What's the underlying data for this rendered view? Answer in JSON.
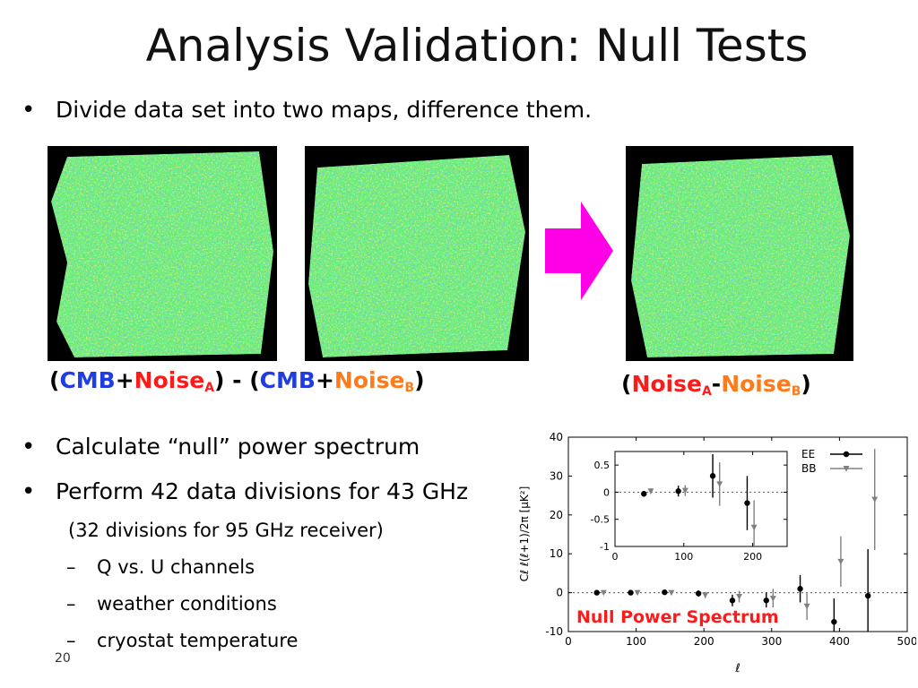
{
  "slide": {
    "title": "Analysis Validation: Null Tests",
    "page_number": "20",
    "bullets": [
      "Divide data set into two maps, difference them.",
      "Calculate “null” power spectrum",
      "Perform 42 data divisions for 43 GHz"
    ],
    "note": "(32 divisions for 95 GHz receiver)",
    "sub_items": [
      "Q vs. U channels",
      "weather conditions",
      "cryostat temperature"
    ],
    "colors": {
      "cmb": "#1f3de0",
      "noise_a": "#ff1a1a",
      "noise_b": "#ff7a1a",
      "arrow": "#ff00e6",
      "map_green": "#6cf07a",
      "null_label": "#ff1a1a"
    },
    "caption_left": {
      "open": "(",
      "cmb_1": "CMB",
      "plus_1": "+",
      "noise_1": "Noise",
      "noise_1_sub": "A",
      "mid": ") - (",
      "cmb_2": "CMB",
      "plus_2": "+",
      "noise_2": "Noise",
      "noise_2_sub": "B",
      "close": ")"
    },
    "caption_right": {
      "open": "(",
      "noise_1": "Noise",
      "noise_1_sub": "A",
      "minus": "-",
      "noise_2": "Noise",
      "noise_2_sub": "B",
      "close": ")"
    },
    "arrow_icon": "right-arrow-icon"
  },
  "chart_data": [
    {
      "type": "scatter",
      "title": "Null Power Spectrum",
      "xlabel": "ℓ",
      "ylabel": "Cℓ ℓ(ℓ+1)/2π [μK²]",
      "xlim": [
        0,
        500
      ],
      "ylim": [
        -10,
        40
      ],
      "xticks": [
        "0",
        "100",
        "200",
        "300",
        "400",
        "500"
      ],
      "yticks": [
        "-10",
        "0",
        "10",
        "20",
        "30",
        "40"
      ],
      "grid": false,
      "zero_line": true,
      "legend": "top-right",
      "series": [
        {
          "name": "EE",
          "color": "#000000",
          "marker": "circle",
          "points": [
            {
              "x": 42,
              "y": 0.0,
              "err": 0.4
            },
            {
              "x": 92,
              "y": 0.0,
              "err": 0.4
            },
            {
              "x": 142,
              "y": 0.1,
              "err": 0.5
            },
            {
              "x": 192,
              "y": -0.2,
              "err": 0.8
            },
            {
              "x": 242,
              "y": -2.0,
              "err": 1.5
            },
            {
              "x": 292,
              "y": -2.0,
              "err": 2.0
            },
            {
              "x": 342,
              "y": 1.0,
              "err": 3.5
            },
            {
              "x": 392,
              "y": -7.5,
              "err": 6.0
            },
            {
              "x": 442,
              "y": -0.8,
              "err": 12.0
            }
          ]
        },
        {
          "name": "BB",
          "color": "#808080",
          "marker": "triangle-down",
          "points": [
            {
              "x": 52,
              "y": 0.0,
              "err": 0.4
            },
            {
              "x": 102,
              "y": 0.0,
              "err": 0.4
            },
            {
              "x": 152,
              "y": 0.0,
              "err": 0.5
            },
            {
              "x": 202,
              "y": -0.6,
              "err": 0.8
            },
            {
              "x": 252,
              "y": -1.0,
              "err": 1.5
            },
            {
              "x": 302,
              "y": -1.5,
              "err": 2.5
            },
            {
              "x": 352,
              "y": -3.5,
              "err": 3.5
            },
            {
              "x": 402,
              "y": 8.0,
              "err": 6.5
            },
            {
              "x": 452,
              "y": 24.0,
              "err": 13.0
            }
          ]
        }
      ]
    },
    {
      "type": "scatter",
      "title": "",
      "xlim": [
        0,
        250
      ],
      "ylim": [
        -1,
        0.75
      ],
      "xticks": [
        "0",
        "100",
        "200"
      ],
      "yticks": [
        "-1",
        "-0.5",
        "0",
        "0.5"
      ],
      "grid": false,
      "zero_line": true,
      "series": [
        {
          "name": "EE",
          "color": "#000000",
          "marker": "circle",
          "points": [
            {
              "x": 42,
              "y": -0.03,
              "err": 0.05
            },
            {
              "x": 92,
              "y": 0.02,
              "err": 0.1
            },
            {
              "x": 142,
              "y": 0.3,
              "err": 0.4
            },
            {
              "x": 192,
              "y": -0.2,
              "err": 0.5
            }
          ]
        },
        {
          "name": "BB",
          "color": "#808080",
          "marker": "triangle-down",
          "points": [
            {
              "x": 52,
              "y": 0.02,
              "err": 0.05
            },
            {
              "x": 102,
              "y": 0.03,
              "err": 0.1
            },
            {
              "x": 152,
              "y": 0.15,
              "err": 0.4
            },
            {
              "x": 202,
              "y": -0.65,
              "err": 0.5
            }
          ]
        }
      ]
    }
  ]
}
